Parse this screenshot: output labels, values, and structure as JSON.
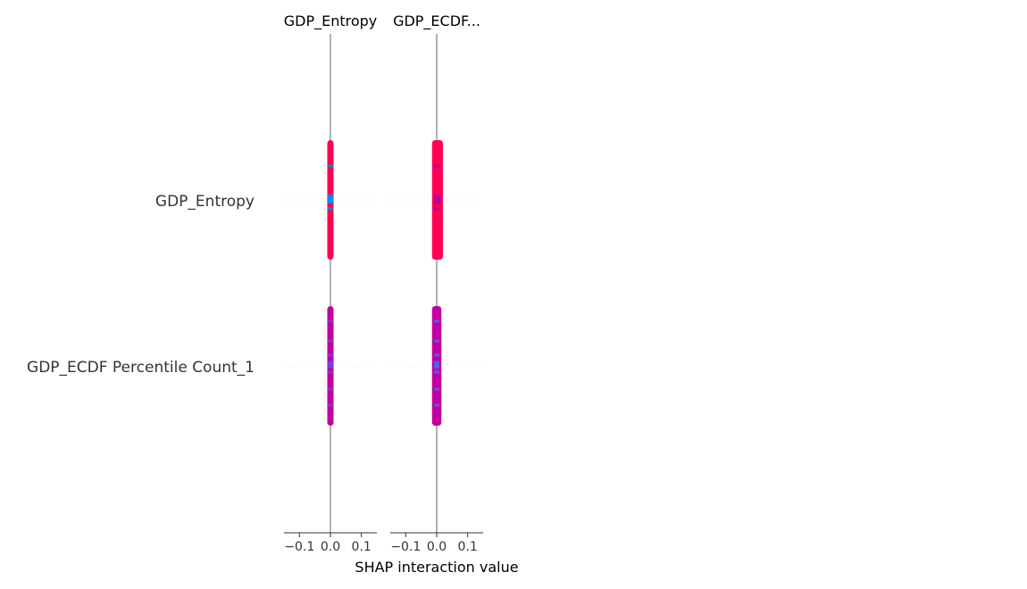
{
  "chart_data": {
    "type": "scatter",
    "title": "",
    "xlabel": "SHAP interaction value",
    "features": [
      "GDP_Entropy",
      "GDP_ECDF Percentile Count_1"
    ],
    "xlim": [
      -0.15,
      0.15
    ],
    "x_ticks": [
      "−0.1",
      "0.0",
      "0.1"
    ],
    "x_tick_values": [
      -0.1,
      0.0,
      0.1
    ],
    "grid": false,
    "panels": [
      {
        "title": "GDP_Entropy",
        "rows": [
          {
            "feature": "GDP_Entropy",
            "shap_min": 0.0,
            "shap_max": 0.0,
            "dominant_color": "#ff0052",
            "accent_color": "#008bfb"
          },
          {
            "feature": "GDP_ECDF Percentile Count_1",
            "shap_min": 0.0,
            "shap_max": 0.0,
            "dominant_color": "#c3009f",
            "accent_color": "#7b3ce0"
          }
        ]
      },
      {
        "title": "GDP_ECDF...",
        "rows": [
          {
            "feature": "GDP_Entropy",
            "shap_min": -0.005,
            "shap_max": 0.01,
            "dominant_color": "#ff0052",
            "accent_color": "#b4009f"
          },
          {
            "feature": "GDP_ECDF Percentile Count_1",
            "shap_min": -0.005,
            "shap_max": 0.005,
            "dominant_color": "#c3009f",
            "accent_color": "#4f65ee"
          }
        ]
      }
    ],
    "colors": {
      "high": "#ff0052",
      "low": "#008bfb",
      "mid": "#c3009f",
      "zero_line": "#999999",
      "axis": "#333333"
    }
  }
}
